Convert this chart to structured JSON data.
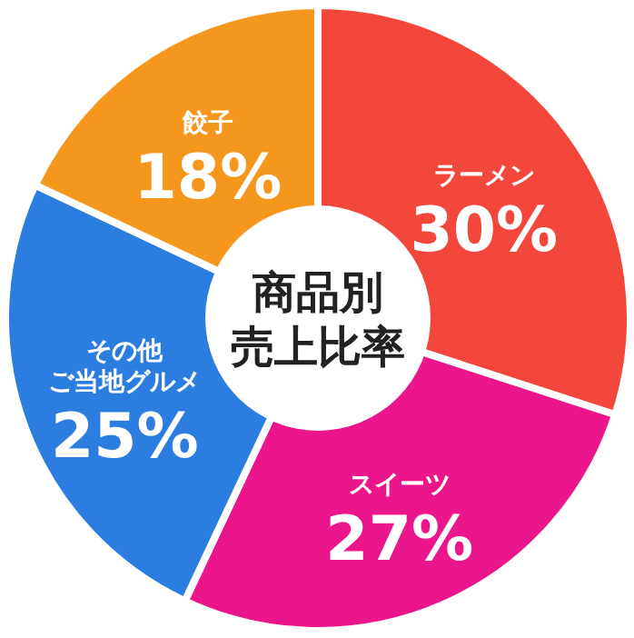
{
  "chart_data": {
    "type": "donut",
    "title": "商品別売上比率",
    "categories": [
      "ラーメン",
      "スイーツ",
      "その他ご当地グルメ",
      "餃子"
    ],
    "values": [
      30,
      27,
      25,
      18
    ],
    "colors": [
      "#f4473b",
      "#ec168c",
      "#2b7de0",
      "#f5961d"
    ],
    "value_labels": [
      "30%",
      "27%",
      "25%",
      "18%"
    ],
    "legend": false
  }
}
